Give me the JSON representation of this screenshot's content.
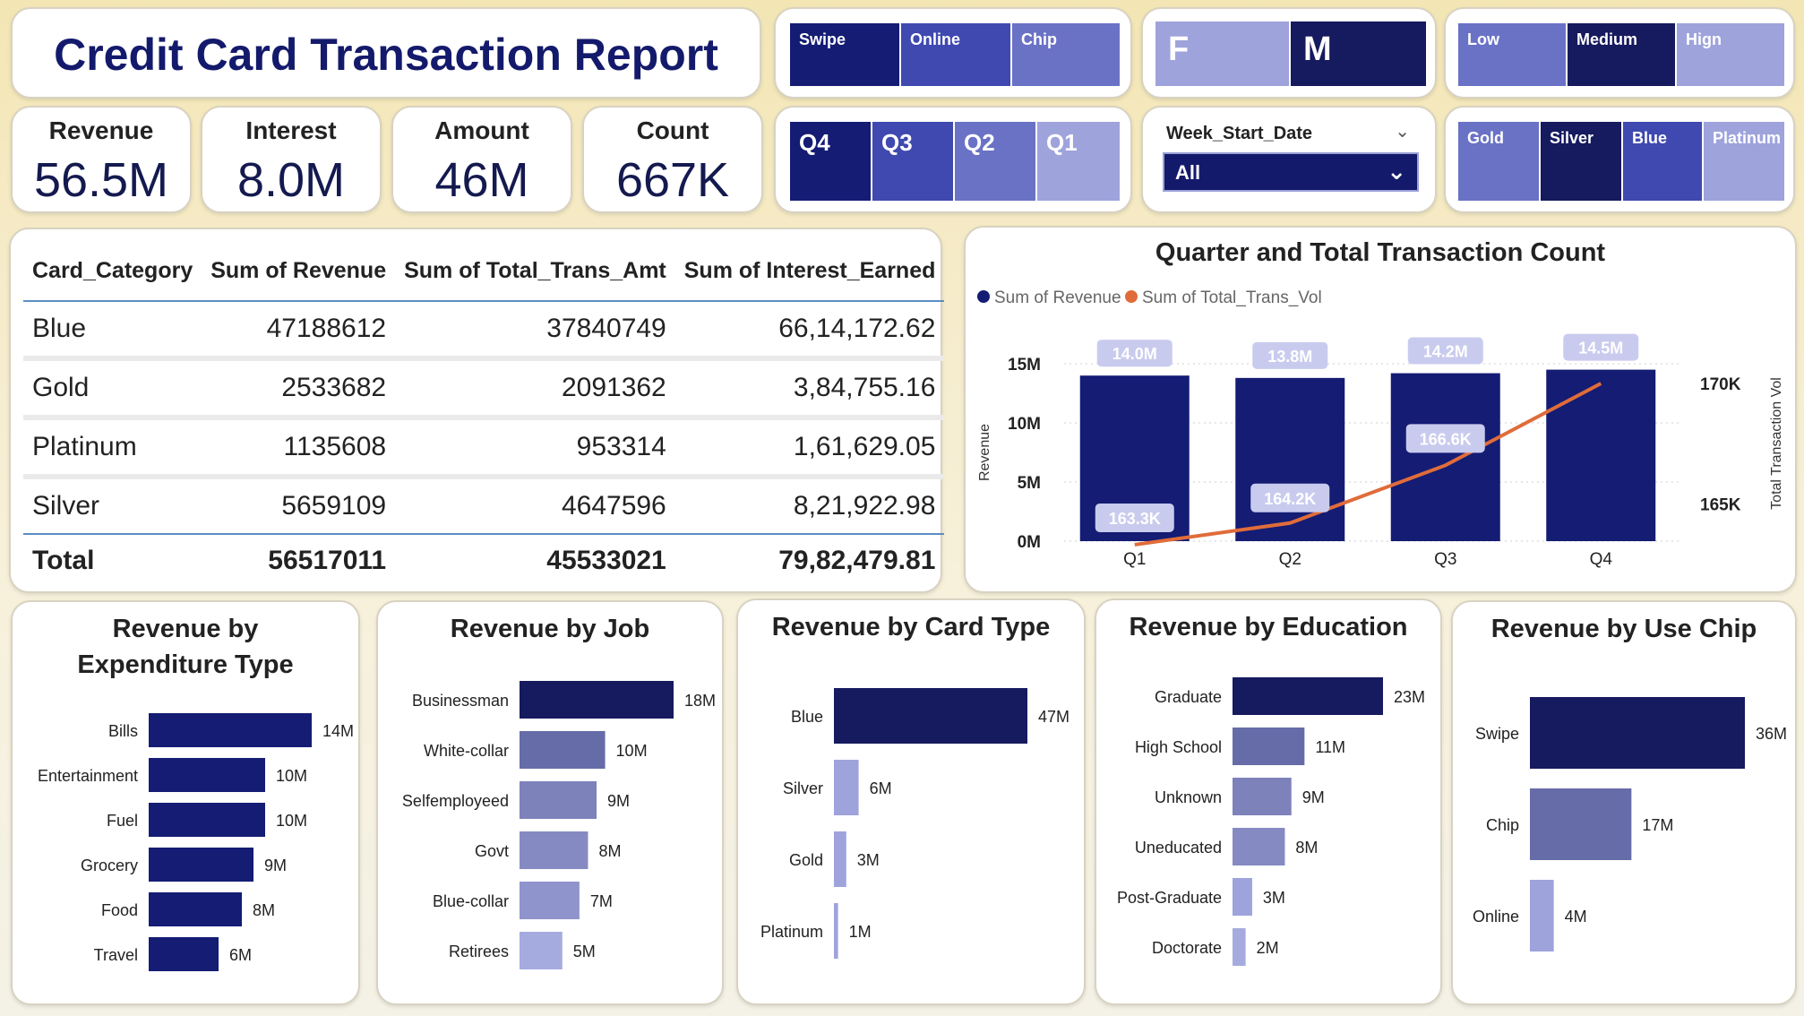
{
  "report_title": "Credit Card Transaction Report",
  "kpis": [
    {
      "label": "Revenue",
      "value": "56.5M"
    },
    {
      "label": "Interest",
      "value": "8.0M"
    },
    {
      "label": "Amount",
      "value": "46M"
    },
    {
      "label": "Count",
      "value": "667K"
    }
  ],
  "slicers": {
    "use_chip": [
      "Swipe",
      "Online",
      "Chip"
    ],
    "gender": [
      "F",
      "M"
    ],
    "income": [
      "Low",
      "Medium",
      "Hign"
    ],
    "quarter": [
      "Q4",
      "Q3",
      "Q2",
      "Q1"
    ],
    "card_category": [
      "Gold",
      "Silver",
      "Blue",
      "Platinum"
    ],
    "week_start_date": {
      "label": "Week_Start_Date",
      "value": "All"
    }
  },
  "colors": {
    "navy": "#161a5e",
    "dark": "#141c74",
    "mid": "#3f49b0",
    "light_mid": "#6a72c6",
    "light": "#9ea3dc",
    "line": "#e06c3a",
    "label_bg": "#c9cbee"
  },
  "table": {
    "headers": [
      "Card_Category",
      "Sum of Revenue",
      "Sum of Total_Trans_Amt",
      "Sum of Interest_Earned"
    ],
    "rows": [
      [
        "Blue",
        "47188612",
        "37840749",
        "66,14,172.62"
      ],
      [
        "Gold",
        "2533682",
        "2091362",
        "3,84,755.16"
      ],
      [
        "Platinum",
        "1135608",
        "953314",
        "1,61,629.05"
      ],
      [
        "Silver",
        "5659109",
        "4647596",
        "8,21,922.98"
      ]
    ],
    "total": [
      "Total",
      "56517011",
      "45533021",
      "79,82,479.81"
    ]
  },
  "chart_data": [
    {
      "type": "bar",
      "title": "Quarter and Total Transaction Count",
      "legend": [
        "Sum of Revenue",
        "Sum of Total_Trans_Vol"
      ],
      "legend_position": "top-left",
      "categories": [
        "Q1",
        "Q2",
        "Q3",
        "Q4"
      ],
      "series": [
        {
          "name": "Sum of Revenue",
          "type": "bar",
          "axis": "left",
          "values": [
            14.0,
            13.8,
            14.2,
            14.5
          ],
          "labels": [
            "14.0M",
            "13.8M",
            "14.2M",
            "14.5M"
          ]
        },
        {
          "name": "Sum of Total_Trans_Vol",
          "type": "line",
          "axis": "right",
          "values": [
            163.3,
            164.2,
            166.6,
            170.0
          ],
          "labels": [
            "163.3K",
            "164.2K",
            "166.6K",
            ""
          ]
        }
      ],
      "ylabel": "Revenue",
      "y2label": "Total Transaction Vol",
      "ylim": [
        0,
        15
      ],
      "y_ticks": [
        "0M",
        "5M",
        "10M",
        "15M"
      ],
      "y2_ticks": [
        "165K",
        "170K"
      ],
      "grid": true
    },
    {
      "type": "bar",
      "orientation": "horizontal",
      "title": "Revenue by Expenditure Type",
      "categories": [
        "Bills",
        "Entertainment",
        "Fuel",
        "Grocery",
        "Food",
        "Travel"
      ],
      "values": [
        14,
        10,
        10,
        9,
        8,
        6
      ],
      "labels": [
        "14M",
        "10M",
        "10M",
        "9M",
        "8M",
        "6M"
      ]
    },
    {
      "type": "bar",
      "orientation": "horizontal",
      "title": "Revenue by Job",
      "categories": [
        "Businessman",
        "White-collar",
        "Selfemployeed",
        "Govt",
        "Blue-collar",
        "Retirees"
      ],
      "values": [
        18,
        10,
        9,
        8,
        7,
        5
      ],
      "labels": [
        "18M",
        "10M",
        "9M",
        "8M",
        "7M",
        "5M"
      ]
    },
    {
      "type": "bar",
      "orientation": "horizontal",
      "title": "Revenue by Card Type",
      "categories": [
        "Blue",
        "Silver",
        "Gold",
        "Platinum"
      ],
      "values": [
        47,
        6,
        3,
        1
      ],
      "labels": [
        "47M",
        "6M",
        "3M",
        "1M"
      ]
    },
    {
      "type": "bar",
      "orientation": "horizontal",
      "title": "Revenue by Education",
      "categories": [
        "Graduate",
        "High School",
        "Unknown",
        "Uneducated",
        "Post-Graduate",
        "Doctorate"
      ],
      "values": [
        23,
        11,
        9,
        8,
        3,
        2
      ],
      "labels": [
        "23M",
        "11M",
        "9M",
        "8M",
        "3M",
        "2M"
      ]
    },
    {
      "type": "bar",
      "orientation": "horizontal",
      "title": "Revenue by Use Chip",
      "categories": [
        "Swipe",
        "Chip",
        "Online"
      ],
      "values": [
        36,
        17,
        4
      ],
      "labels": [
        "36M",
        "17M",
        "4M"
      ]
    }
  ]
}
